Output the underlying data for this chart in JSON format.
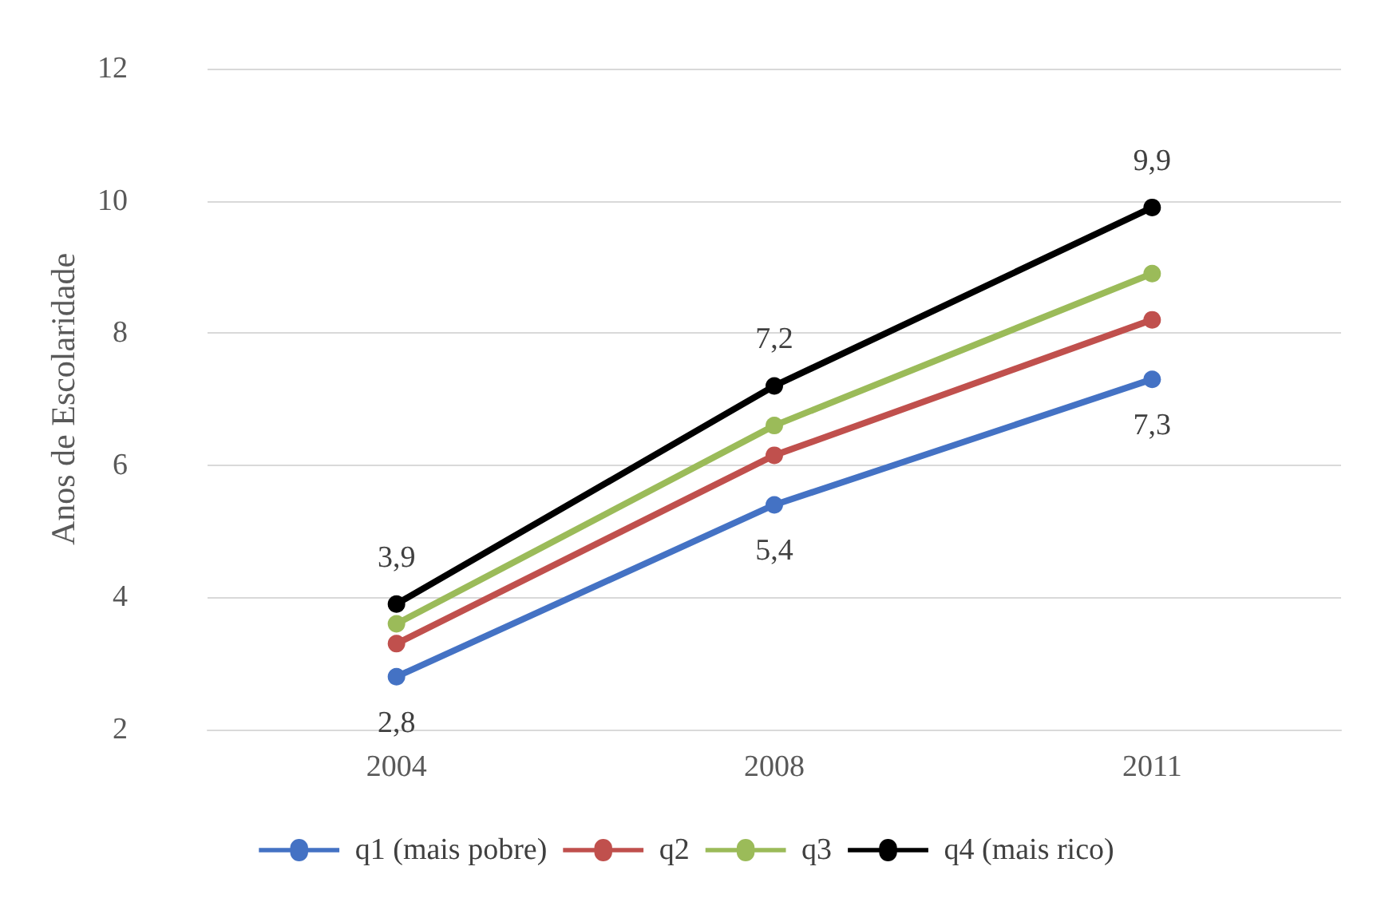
{
  "chart_data": {
    "type": "line",
    "ylabel": "Anos de Escolaridade",
    "categories": [
      "2004",
      "2008",
      "2011"
    ],
    "series": [
      {
        "name": "q1 (mais pobre)",
        "color": "#4472c4",
        "values": [
          2.8,
          5.4,
          7.3
        ],
        "value_labels": [
          "2,8",
          "5,4",
          "7,3"
        ]
      },
      {
        "name": "q2",
        "color": "#c0504d",
        "values": [
          3.3,
          6.15,
          8.2
        ]
      },
      {
        "name": "q3",
        "color": "#9bbb59",
        "values": [
          3.6,
          6.6,
          8.9
        ]
      },
      {
        "name": "q4 (mais rico)",
        "color": "#000000",
        "values": [
          3.9,
          7.2,
          9.9
        ],
        "value_labels": [
          "3,9",
          "7,2",
          "9,9"
        ]
      }
    ],
    "ylim": [
      2,
      12
    ],
    "yticks": [
      2,
      4,
      6,
      8,
      10,
      12
    ],
    "grid": "y",
    "legend": "bottom",
    "marker": "circle",
    "line_style": "solid"
  }
}
